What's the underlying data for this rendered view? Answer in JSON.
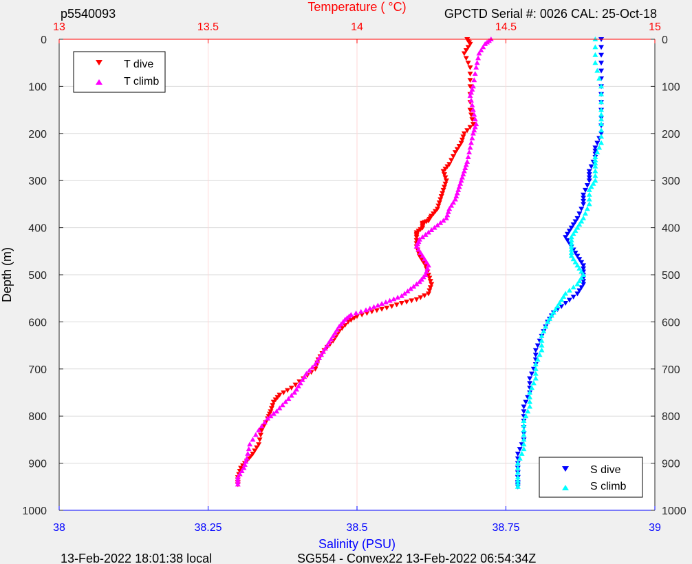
{
  "header": {
    "plot_id": "p5540093",
    "serial_info": "GPCTD Serial #: 0026 CAL: 25-Oct-18"
  },
  "footer": {
    "local_time": "13-Feb-2022 18:01:38 local",
    "mission": "SG554 - Convex22 13-Feb-2022 06:54:34Z"
  },
  "chart_data": {
    "type": "scatter",
    "title": "",
    "ylabel": "Depth (m)",
    "ylim": [
      0,
      1000
    ],
    "y_reversed": true,
    "y_ticks": [
      0,
      100,
      200,
      300,
      400,
      500,
      600,
      700,
      800,
      900,
      1000
    ],
    "temperature_axis": {
      "label": "Temperature (    °C)",
      "position": "top",
      "color": "#ff0000",
      "lim": [
        13,
        15
      ],
      "ticks": [
        13,
        13.5,
        14,
        14.5,
        15
      ],
      "tick_labels": [
        "13",
        "13.5",
        "14",
        "14.5",
        "15"
      ],
      "grid": true
    },
    "salinity_axis": {
      "label": "Salinity (PSU)",
      "position": "bottom",
      "color": "#0000ff",
      "lim": [
        38,
        39
      ],
      "ticks": [
        38,
        38.25,
        38.5,
        38.75,
        39
      ],
      "tick_labels": [
        "38",
        "38.25",
        "38.5",
        "38.75",
        "39"
      ]
    },
    "grid": true,
    "legends": [
      {
        "placement": "top-left",
        "entries": [
          "T dive",
          "T climb"
        ]
      },
      {
        "placement": "bottom-right",
        "entries": [
          "S dive",
          "S climb"
        ]
      }
    ],
    "series": [
      {
        "name": "T dive",
        "axis": "temperature",
        "marker": "triangle-down",
        "color": "#ff0000",
        "points": [
          [
            14.37,
            0
          ],
          [
            14.38,
            10
          ],
          [
            14.36,
            30
          ],
          [
            14.38,
            60
          ],
          [
            14.38,
            100
          ],
          [
            14.38,
            150
          ],
          [
            14.39,
            180
          ],
          [
            14.36,
            200
          ],
          [
            14.35,
            220
          ],
          [
            14.33,
            240
          ],
          [
            14.31,
            265
          ],
          [
            14.29,
            280
          ],
          [
            14.3,
            300
          ],
          [
            14.29,
            320
          ],
          [
            14.28,
            340
          ],
          [
            14.27,
            360
          ],
          [
            14.25,
            375
          ],
          [
            14.24,
            385
          ],
          [
            14.22,
            390
          ],
          [
            14.22,
            400
          ],
          [
            14.2,
            410
          ],
          [
            14.2,
            420
          ],
          [
            14.2,
            440
          ],
          [
            14.21,
            460
          ],
          [
            14.23,
            480
          ],
          [
            14.24,
            500
          ],
          [
            14.25,
            520
          ],
          [
            14.24,
            540
          ],
          [
            14.2,
            552
          ],
          [
            14.15,
            560
          ],
          [
            14.1,
            570
          ],
          [
            14.05,
            578
          ],
          [
            14.0,
            588
          ],
          [
            13.97,
            600
          ],
          [
            13.94,
            620
          ],
          [
            13.92,
            640
          ],
          [
            13.89,
            660
          ],
          [
            13.87,
            680
          ],
          [
            13.86,
            700
          ],
          [
            13.82,
            720
          ],
          [
            13.78,
            740
          ],
          [
            13.74,
            755
          ],
          [
            13.72,
            770
          ],
          [
            13.71,
            790
          ],
          [
            13.7,
            805
          ],
          [
            13.68,
            830
          ],
          [
            13.67,
            860
          ],
          [
            13.65,
            880
          ],
          [
            13.63,
            895
          ],
          [
            13.61,
            910
          ],
          [
            13.6,
            930
          ],
          [
            13.6,
            945
          ]
        ]
      },
      {
        "name": "T climb",
        "axis": "temperature",
        "marker": "triangle-up",
        "color": "#ff00ff",
        "points": [
          [
            13.6,
            945
          ],
          [
            13.6,
            930
          ],
          [
            13.62,
            910
          ],
          [
            13.63,
            890
          ],
          [
            13.64,
            860
          ],
          [
            13.67,
            830
          ],
          [
            13.7,
            805
          ],
          [
            13.73,
            790
          ],
          [
            13.76,
            770
          ],
          [
            13.79,
            750
          ],
          [
            13.81,
            730
          ],
          [
            13.83,
            710
          ],
          [
            13.86,
            690
          ],
          [
            13.88,
            670
          ],
          [
            13.9,
            650
          ],
          [
            13.92,
            630
          ],
          [
            13.94,
            610
          ],
          [
            13.96,
            595
          ],
          [
            13.98,
            585
          ],
          [
            14.03,
            575
          ],
          [
            14.07,
            565
          ],
          [
            14.11,
            555
          ],
          [
            14.15,
            545
          ],
          [
            14.18,
            530
          ],
          [
            14.21,
            515
          ],
          [
            14.23,
            500
          ],
          [
            14.24,
            480
          ],
          [
            14.22,
            460
          ],
          [
            14.2,
            440
          ],
          [
            14.21,
            425
          ],
          [
            14.24,
            410
          ],
          [
            14.27,
            395
          ],
          [
            14.3,
            380
          ],
          [
            14.31,
            360
          ],
          [
            14.33,
            340
          ],
          [
            14.34,
            320
          ],
          [
            14.35,
            300
          ],
          [
            14.36,
            280
          ],
          [
            14.37,
            260
          ],
          [
            14.38,
            230
          ],
          [
            14.39,
            200
          ],
          [
            14.4,
            180
          ],
          [
            14.39,
            150
          ],
          [
            14.38,
            120
          ],
          [
            14.39,
            100
          ],
          [
            14.4,
            60
          ],
          [
            14.41,
            30
          ],
          [
            14.43,
            10
          ],
          [
            14.45,
            0
          ]
        ]
      },
      {
        "name": "S dive",
        "axis": "salinity",
        "marker": "triangle-down",
        "color": "#0000ff",
        "points": [
          [
            38.91,
            0
          ],
          [
            38.91,
            50
          ],
          [
            38.91,
            100
          ],
          [
            38.91,
            150
          ],
          [
            38.91,
            200
          ],
          [
            38.9,
            230
          ],
          [
            38.9,
            250
          ],
          [
            38.89,
            280
          ],
          [
            38.89,
            300
          ],
          [
            38.88,
            330
          ],
          [
            38.88,
            350
          ],
          [
            38.87,
            380
          ],
          [
            38.86,
            400
          ],
          [
            38.85,
            420
          ],
          [
            38.86,
            440
          ],
          [
            38.87,
            460
          ],
          [
            38.88,
            480
          ],
          [
            38.88,
            500
          ],
          [
            38.88,
            520
          ],
          [
            38.87,
            540
          ],
          [
            38.85,
            560
          ],
          [
            38.83,
            580
          ],
          [
            38.82,
            600
          ],
          [
            38.81,
            630
          ],
          [
            38.8,
            660
          ],
          [
            38.8,
            690
          ],
          [
            38.79,
            720
          ],
          [
            38.79,
            750
          ],
          [
            38.78,
            780
          ],
          [
            38.78,
            810
          ],
          [
            38.78,
            850
          ],
          [
            38.77,
            880
          ],
          [
            38.77,
            910
          ],
          [
            38.77,
            940
          ],
          [
            38.77,
            950
          ]
        ]
      },
      {
        "name": "S climb",
        "axis": "salinity",
        "marker": "triangle-up",
        "color": "#00ffff",
        "points": [
          [
            38.77,
            950
          ],
          [
            38.77,
            930
          ],
          [
            38.77,
            900
          ],
          [
            38.78,
            870
          ],
          [
            38.78,
            840
          ],
          [
            38.78,
            810
          ],
          [
            38.79,
            780
          ],
          [
            38.79,
            750
          ],
          [
            38.8,
            720
          ],
          [
            38.8,
            690
          ],
          [
            38.81,
            660
          ],
          [
            38.81,
            630
          ],
          [
            38.82,
            600
          ],
          [
            38.83,
            580
          ],
          [
            38.84,
            560
          ],
          [
            38.85,
            540
          ],
          [
            38.87,
            520
          ],
          [
            38.88,
            500
          ],
          [
            38.87,
            480
          ],
          [
            38.86,
            460
          ],
          [
            38.86,
            440
          ],
          [
            38.86,
            420
          ],
          [
            38.87,
            400
          ],
          [
            38.88,
            380
          ],
          [
            38.89,
            350
          ],
          [
            38.89,
            320
          ],
          [
            38.9,
            300
          ],
          [
            38.9,
            270
          ],
          [
            38.9,
            250
          ],
          [
            38.91,
            220
          ],
          [
            38.91,
            180
          ],
          [
            38.91,
            150
          ],
          [
            38.91,
            100
          ],
          [
            38.9,
            50
          ],
          [
            38.9,
            0
          ]
        ]
      }
    ]
  }
}
